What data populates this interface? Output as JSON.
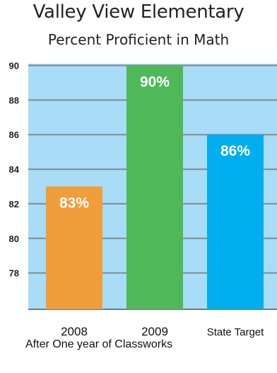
{
  "chart_data": {
    "type": "bar",
    "title": "Valley View Elementary",
    "subtitle": "Percent Proficient in Math",
    "categories": [
      "2008",
      "2009",
      "State Target"
    ],
    "values": [
      83,
      90,
      86
    ],
    "value_labels": [
      "83%",
      "90%",
      "86%"
    ],
    "bar_colors": [
      "#f09d3b",
      "#4fb95a",
      "#00aeef"
    ],
    "y_ticks": [
      78,
      80,
      82,
      84,
      86,
      88,
      90
    ],
    "ylim": [
      75.9,
      90.1
    ],
    "plot_background": "#a9dcf6",
    "grid": true,
    "footnote": "After One year of Classworks"
  }
}
